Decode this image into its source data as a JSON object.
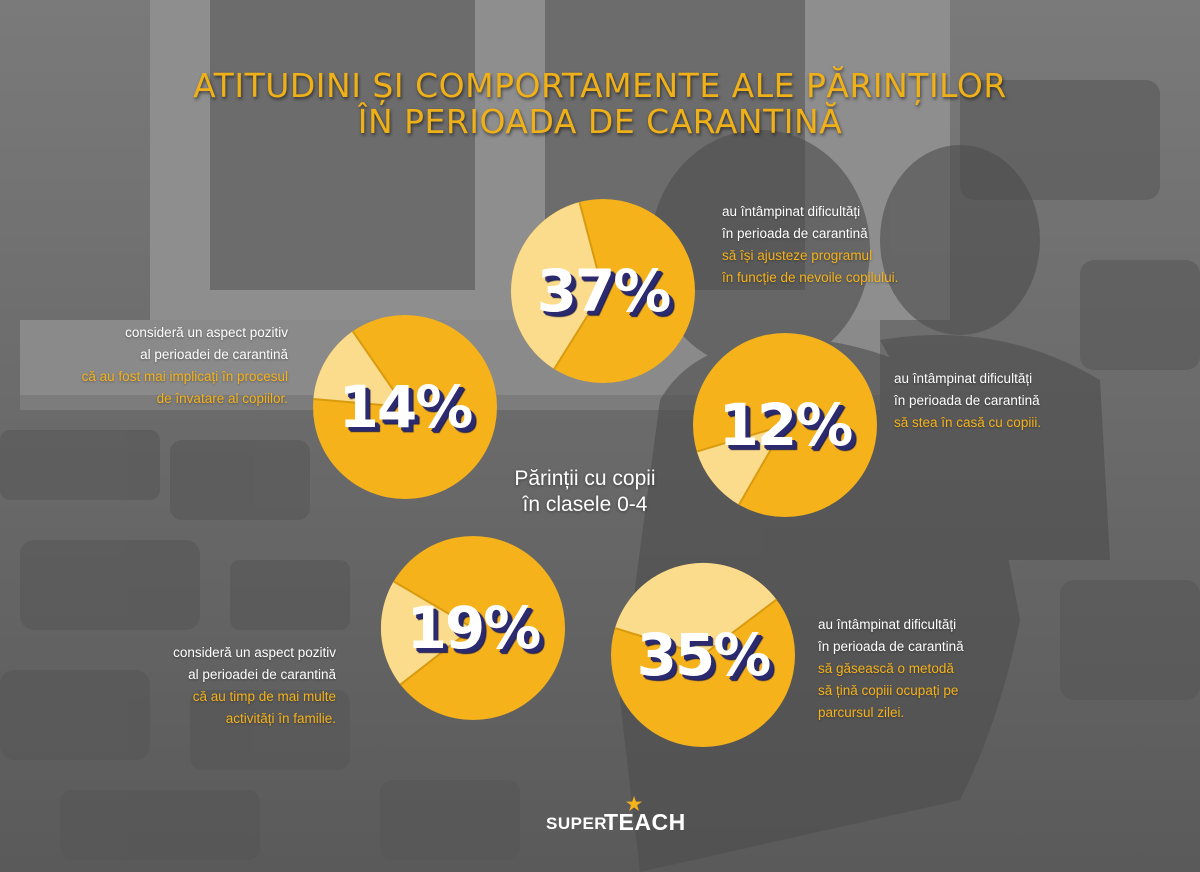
{
  "title": {
    "line1": "ATITUDINI ȘI COMPORTAMENTE ALE PĂRINȚILOR",
    "line2": "ÎN PERIOADA DE CARANTINĂ"
  },
  "center_label": {
    "line1": "Părinții cu copii",
    "line2": "în clasele 0-4"
  },
  "colors": {
    "accent": "#f5b21b",
    "slice": "#fbdc8c",
    "pct_shadow": "#2b2a6e"
  },
  "chart_data": {
    "type": "pie",
    "title": "",
    "series": [
      {
        "value": 37,
        "label": "37%"
      },
      {
        "value": 14,
        "label": "14%"
      },
      {
        "value": 12,
        "label": "12%"
      },
      {
        "value": 19,
        "label": "19%"
      },
      {
        "value": 35,
        "label": "35%"
      }
    ]
  },
  "blurbs": {
    "b37": {
      "lines": [
        "au întâmpinat dificultăți",
        "în perioada de carantină"
      ],
      "highlight": [
        "să își ajusteze programul",
        "în funcție de nevoile copilului."
      ]
    },
    "b14": {
      "lines": [
        "consideră un aspect pozitiv",
        "al perioadei de carantină"
      ],
      "highlight": [
        "că au fost mai implicați în procesul",
        "de învatare al copiilor."
      ]
    },
    "b12": {
      "lines": [
        "au întâmpinat dificultăți",
        "în perioada de carantină"
      ],
      "highlight": [
        "să stea în casă cu copiii."
      ]
    },
    "b19": {
      "lines": [
        "consideră un aspect pozitiv",
        "al perioadei de carantină"
      ],
      "highlight": [
        "că au timp de mai multe",
        "activități în familie."
      ]
    },
    "b35": {
      "lines": [
        "au întâmpinat dificultăți",
        "în perioada de carantină"
      ],
      "highlight": [
        "să găsească o metodă",
        "să țină copiii ocupați pe",
        "parcursul zilei."
      ]
    }
  },
  "logo": {
    "word1": "SUPER",
    "word2": "TEACH",
    "star": "★"
  }
}
